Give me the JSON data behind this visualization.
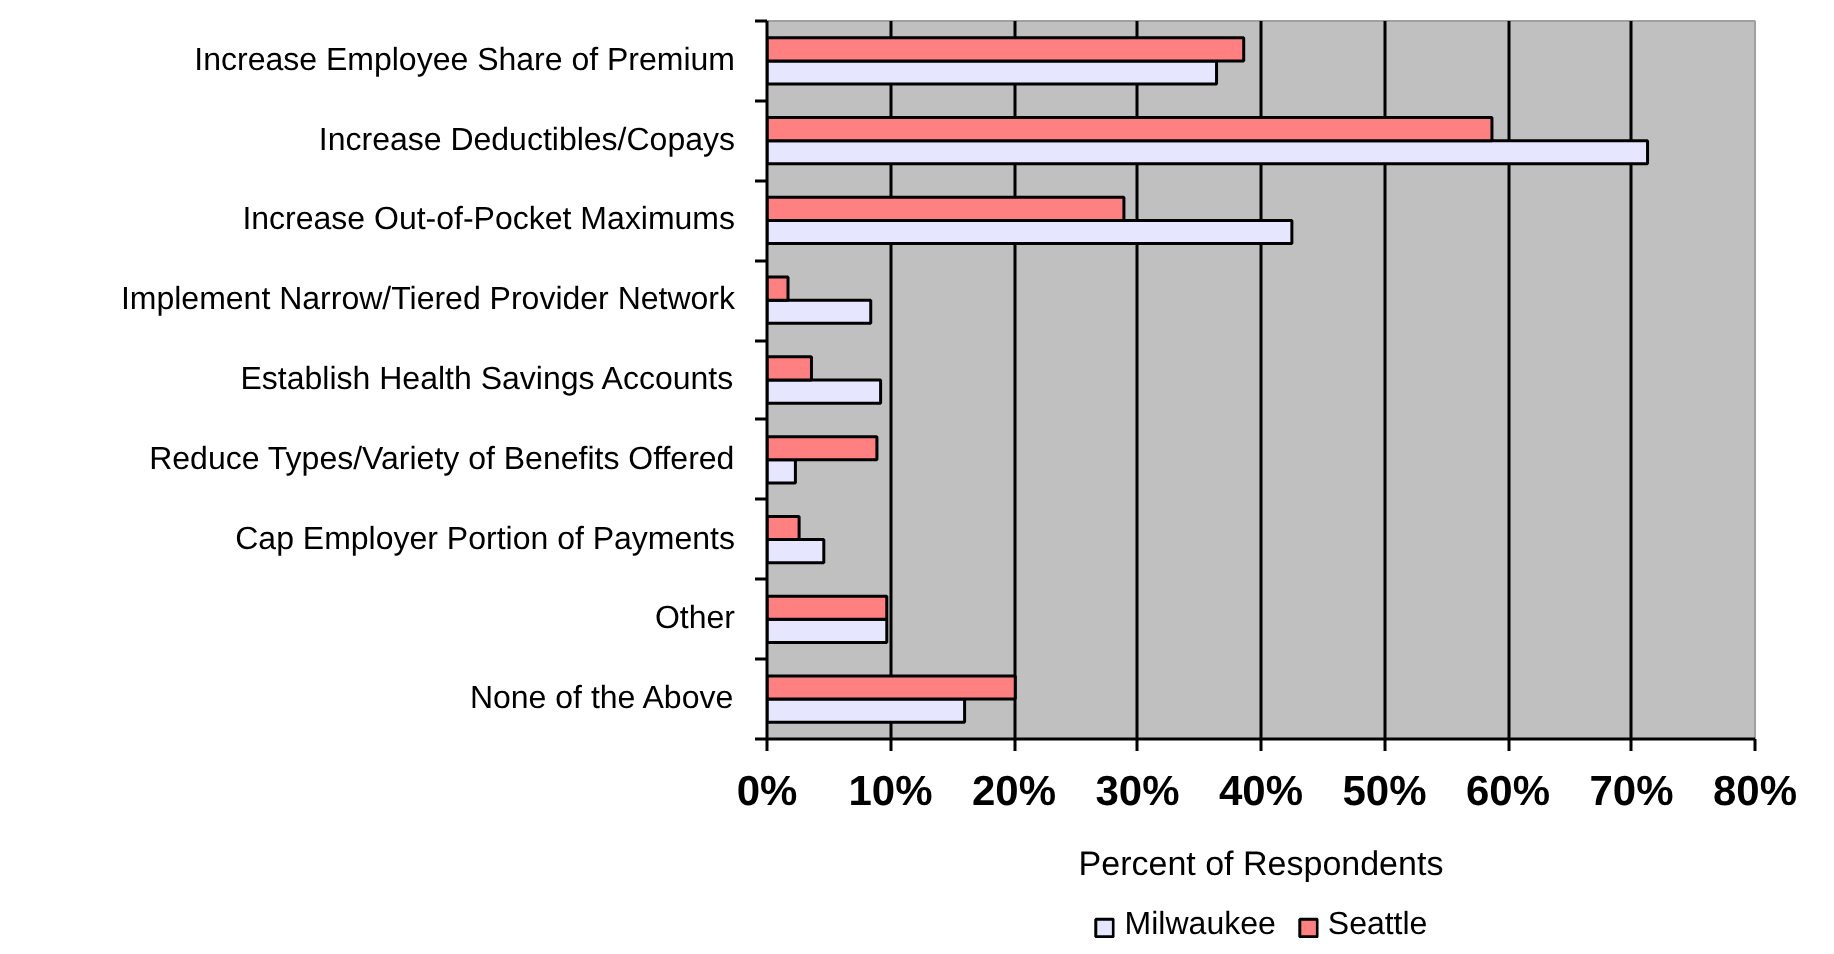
{
  "chart_data": {
    "type": "bar",
    "orientation": "horizontal",
    "categories": [
      "Increase Employee Share of Premium",
      "Increase Deductibles/Copays",
      "Increase Out-of-Pocket Maximums",
      "Implement Narrow/Tiered Provider Network",
      "Establish Health Savings Accounts",
      "Reduce Types/Variety of Benefits Offered",
      "Cap Employer Portion of Payments",
      "Other",
      "None of the Above"
    ],
    "series": [
      {
        "name": "Milwaukee",
        "color": "#e6e6ff",
        "values": [
          36.4,
          71.3,
          42.5,
          8.4,
          9.2,
          2.3,
          4.6,
          9.7,
          16.0
        ]
      },
      {
        "name": "Seattle",
        "color": "#ff8080",
        "values": [
          38.6,
          58.7,
          28.9,
          1.7,
          3.6,
          8.9,
          2.6,
          9.7,
          20.1
        ]
      }
    ],
    "xlabel": "Percent of Respondents",
    "xlim": [
      0,
      80
    ],
    "xticks": [
      {
        "value": 0,
        "label": "0%"
      },
      {
        "value": 10,
        "label": "10%"
      },
      {
        "value": 20,
        "label": "20%"
      },
      {
        "value": 30,
        "label": "30%"
      },
      {
        "value": 40,
        "label": "40%"
      },
      {
        "value": 50,
        "label": "50%"
      },
      {
        "value": 60,
        "label": "60%"
      },
      {
        "value": 70,
        "label": "70%"
      },
      {
        "value": 80,
        "label": "80%"
      }
    ],
    "grid": "x",
    "legend": "bottom"
  }
}
